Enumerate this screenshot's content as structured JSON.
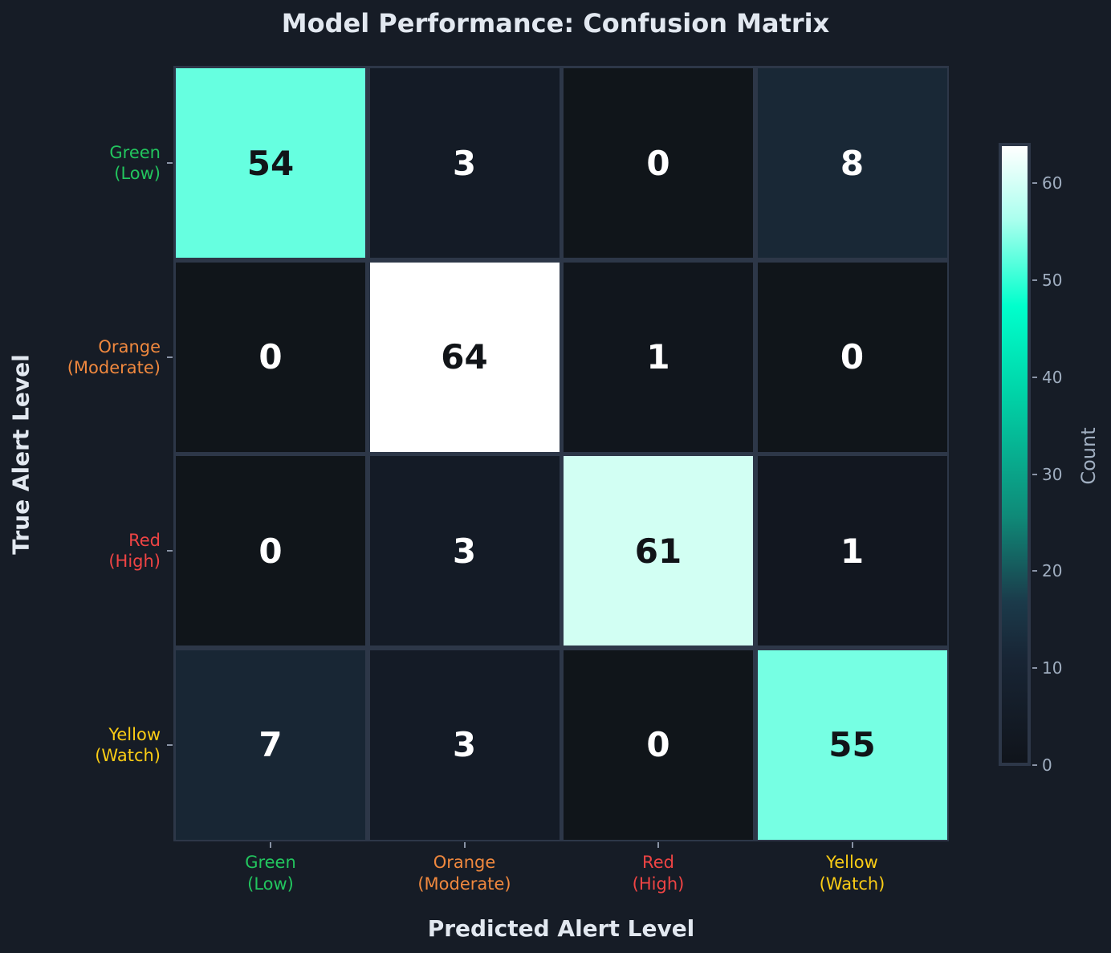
{
  "chart_data": {
    "type": "heatmap",
    "title": "Model Performance: Confusion Matrix",
    "xlabel": "Predicted Alert Level",
    "ylabel": "True Alert Level",
    "x_categories": [
      "Green (Low)",
      "Orange (Moderate)",
      "Red (High)",
      "Yellow (Watch)"
    ],
    "y_categories": [
      "Green (Low)",
      "Orange (Moderate)",
      "Red (High)",
      "Yellow (Watch)"
    ],
    "values": [
      [
        54,
        3,
        0,
        8
      ],
      [
        0,
        64,
        1,
        0
      ],
      [
        0,
        3,
        61,
        1
      ],
      [
        7,
        3,
        0,
        55
      ]
    ],
    "colorbar": {
      "label": "Count",
      "range": [
        0,
        64
      ],
      "ticks": [
        0,
        10,
        20,
        30,
        40,
        50,
        60
      ]
    }
  },
  "title": "Model Performance: Confusion Matrix",
  "xlabel": "Predicted Alert Level",
  "ylabel": "True Alert Level",
  "categories": [
    {
      "name": "Green",
      "sub": "(Low)",
      "color": "#22c55e"
    },
    {
      "name": "Orange",
      "sub": "(Moderate)",
      "color": "#f0883e"
    },
    {
      "name": "Red",
      "sub": "(High)",
      "color": "#ef4444"
    },
    {
      "name": "Yellow",
      "sub": "(Watch)",
      "color": "#facc15"
    }
  ],
  "cells": [
    [
      {
        "v": "54",
        "bg": "#66ffe0",
        "fg": "#111418"
      },
      {
        "v": "3",
        "bg": "#141b26",
        "fg": "#ffffff"
      },
      {
        "v": "0",
        "bg": "#10151a",
        "fg": "#ffffff"
      },
      {
        "v": "8",
        "bg": "#192836",
        "fg": "#ffffff"
      }
    ],
    [
      {
        "v": "0",
        "bg": "#10151a",
        "fg": "#ffffff"
      },
      {
        "v": "64",
        "bg": "#ffffff",
        "fg": "#111418"
      },
      {
        "v": "1",
        "bg": "#11161d",
        "fg": "#ffffff"
      },
      {
        "v": "0",
        "bg": "#10151a",
        "fg": "#ffffff"
      }
    ],
    [
      {
        "v": "0",
        "bg": "#10151a",
        "fg": "#ffffff"
      },
      {
        "v": "3",
        "bg": "#141b26",
        "fg": "#ffffff"
      },
      {
        "v": "61",
        "bg": "#d2fff3",
        "fg": "#111418"
      },
      {
        "v": "1",
        "bg": "#121720",
        "fg": "#ffffff"
      }
    ],
    [
      {
        "v": "7",
        "bg": "#182634",
        "fg": "#ffffff"
      },
      {
        "v": "3",
        "bg": "#141b26",
        "fg": "#ffffff"
      },
      {
        "v": "0",
        "bg": "#10151a",
        "fg": "#ffffff"
      },
      {
        "v": "55",
        "bg": "#76ffe3",
        "fg": "#111418"
      }
    ]
  ],
  "colorbar": {
    "label": "Count",
    "ticks": [
      "0",
      "10",
      "20",
      "30",
      "40",
      "50",
      "60"
    ]
  }
}
